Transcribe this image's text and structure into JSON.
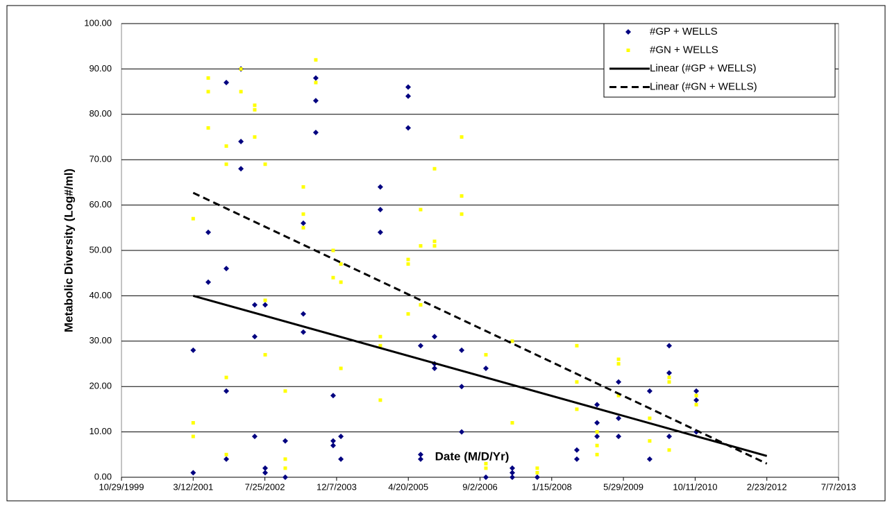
{
  "chart_data": {
    "type": "scatter",
    "x_label": "Date (M/D/Yr)",
    "y_label": "Metabolic Diversity  (Log#/ml)",
    "xlim": [
      36462,
      41462
    ],
    "xticks": [
      {
        "value": 36462,
        "label": "10/29/1999"
      },
      {
        "value": 36962,
        "label": "3/12/2001"
      },
      {
        "value": 37462,
        "label": "7/25/2002"
      },
      {
        "value": 37962,
        "label": "12/7/2003"
      },
      {
        "value": 38462,
        "label": "4/20/2005"
      },
      {
        "value": 38962,
        "label": "9/2/2006"
      },
      {
        "value": 39462,
        "label": "1/15/2008"
      },
      {
        "value": 39962,
        "label": "5/29/2009"
      },
      {
        "value": 40462,
        "label": "10/11/2010"
      },
      {
        "value": 40962,
        "label": "2/23/2012"
      },
      {
        "value": 41462,
        "label": "7/7/2013"
      }
    ],
    "ylim": [
      0,
      100
    ],
    "yticks": [
      {
        "value": 0,
        "label": "0.00"
      },
      {
        "value": 10,
        "label": "10.00"
      },
      {
        "value": 20,
        "label": "20.00"
      },
      {
        "value": 30,
        "label": "30.00"
      },
      {
        "value": 40,
        "label": "40.00"
      },
      {
        "value": 50,
        "label": "50.00"
      },
      {
        "value": 60,
        "label": "60.00"
      },
      {
        "value": 70,
        "label": "70.00"
      },
      {
        "value": 80,
        "label": "80.00"
      },
      {
        "value": 90,
        "label": "90.00"
      },
      {
        "value": 100,
        "label": "100.00"
      }
    ],
    "grid": true,
    "legend": "top right",
    "series": [
      {
        "name": "#GP + WELLS",
        "color": "#000080",
        "marker": "diamond",
        "x": [
          36962,
          36962,
          37067,
          37067,
          37193,
          37193,
          37193,
          37193,
          37295,
          37295,
          37295,
          37391,
          37391,
          37391,
          37464,
          37464,
          37464,
          37604,
          37604,
          37730,
          37730,
          37730,
          37817,
          37817,
          37817,
          37938,
          37938,
          37938,
          37992,
          37992,
          38267,
          38267,
          38267,
          38461,
          38461,
          38461,
          38548,
          38548,
          38548,
          38645,
          38645,
          38645,
          38834,
          38834,
          38834,
          39003,
          39003,
          39187,
          39187,
          39187,
          39361,
          39637,
          39637,
          39778,
          39778,
          39778,
          39928,
          39928,
          39928,
          40145,
          40145,
          40281,
          40281,
          40281,
          40470,
          40470,
          40470
        ],
        "values": [
          28,
          1,
          54,
          43,
          87,
          46,
          19,
          4,
          90,
          74,
          68,
          38,
          31,
          9,
          38,
          2,
          1,
          8,
          0,
          56,
          36,
          32,
          88,
          83,
          76,
          18,
          8,
          7,
          9,
          4,
          64,
          59,
          54,
          86,
          84,
          77,
          29,
          5,
          4,
          31,
          25,
          24,
          28,
          20,
          10,
          24,
          0,
          2,
          1,
          0,
          0,
          6,
          4,
          16,
          12,
          9,
          21,
          13,
          9,
          19,
          4,
          29,
          23,
          9,
          19,
          17,
          10
        ]
      },
      {
        "name": "#GN + WELLS",
        "color": "#ffff00",
        "marker": "square",
        "x": [
          36962,
          36962,
          36962,
          37067,
          37067,
          37067,
          37193,
          37193,
          37193,
          37193,
          37295,
          37295,
          37391,
          37391,
          37391,
          37464,
          37464,
          37464,
          37604,
          37604,
          37604,
          37730,
          37730,
          37730,
          37817,
          37817,
          37938,
          37938,
          37992,
          37992,
          37992,
          38267,
          38267,
          38267,
          38461,
          38461,
          38461,
          38548,
          38548,
          38548,
          38645,
          38645,
          38645,
          38834,
          38834,
          38834,
          39003,
          39003,
          39003,
          39187,
          39187,
          39361,
          39361,
          39637,
          39637,
          39637,
          39778,
          39778,
          39778,
          39928,
          39928,
          39928,
          40145,
          40145,
          40281,
          40281,
          40281,
          40470,
          40470
        ],
        "values": [
          57,
          12,
          9,
          88,
          85,
          77,
          73,
          69,
          22,
          5,
          90,
          85,
          82,
          81,
          75,
          69,
          39,
          27,
          19,
          4,
          2,
          64,
          58,
          55,
          92,
          87,
          50,
          44,
          47,
          43,
          24,
          31,
          29,
          17,
          48,
          47,
          36,
          59,
          51,
          38,
          68,
          52,
          51,
          75,
          62,
          58,
          27,
          3,
          2,
          30,
          12,
          2,
          1,
          29,
          21,
          15,
          10,
          7,
          5,
          26,
          25,
          18,
          13,
          8,
          22,
          21,
          6,
          18,
          16
        ]
      },
      {
        "name": "Linear (#GP + WELLS)",
        "color": "#000000",
        "line": "solid",
        "x": [
          36962,
          40962
        ],
        "values": [
          40,
          4.7
        ]
      },
      {
        "name": "Linear (#GN + WELLS)",
        "color": "#000000",
        "line": "dashed",
        "x": [
          36962,
          40962
        ],
        "values": [
          62.7,
          3
        ]
      }
    ]
  }
}
